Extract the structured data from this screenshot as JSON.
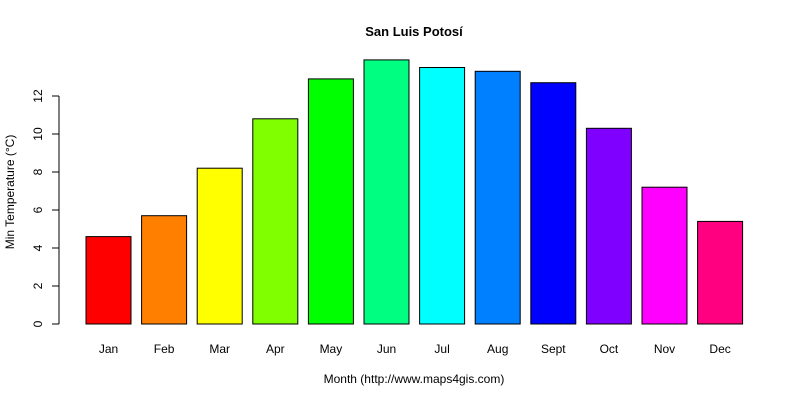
{
  "chart_data": {
    "type": "bar",
    "title": "San Luis Potosí",
    "xlabel": "Month (http://www.maps4gis.com)",
    "ylabel": "Min Temperature (°C)",
    "categories": [
      "Jan",
      "Feb",
      "Mar",
      "Apr",
      "May",
      "Jun",
      "Jul",
      "Aug",
      "Sept",
      "Oct",
      "Nov",
      "Dec"
    ],
    "values": [
      4.6,
      5.7,
      8.2,
      10.8,
      12.9,
      13.9,
      13.5,
      13.3,
      12.7,
      10.3,
      7.2,
      5.4
    ],
    "colors": [
      "#FF0000",
      "#FF8000",
      "#FFFF00",
      "#80FF00",
      "#00FF00",
      "#00FF80",
      "#00FFFF",
      "#0080FF",
      "#0000FF",
      "#8000FF",
      "#FF00FF",
      "#FF0080"
    ],
    "yticks": [
      0,
      2,
      4,
      6,
      8,
      10,
      12
    ],
    "ylim": [
      0,
      14
    ],
    "grid": false,
    "legend": "none"
  }
}
